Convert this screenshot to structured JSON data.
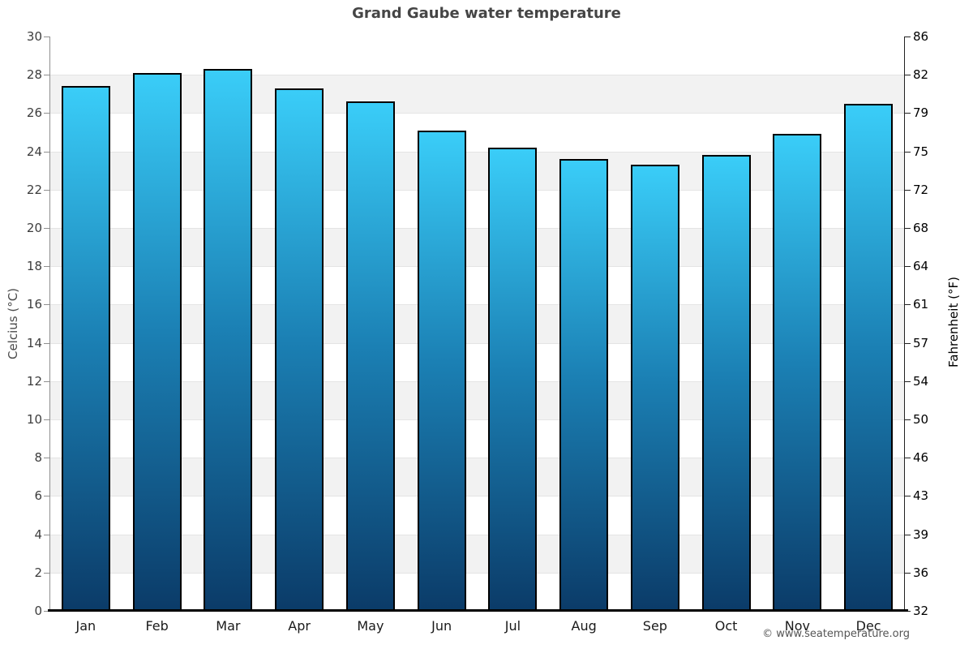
{
  "page": {
    "copyright": "© www.seatemperature.org"
  },
  "chart_data": {
    "type": "bar",
    "title": "Grand Gaube water temperature",
    "categories": [
      "Jan",
      "Feb",
      "Mar",
      "Apr",
      "May",
      "Jun",
      "Jul",
      "Aug",
      "Sep",
      "Oct",
      "Nov",
      "Dec"
    ],
    "values": [
      27.4,
      28.1,
      28.3,
      27.3,
      26.6,
      25.1,
      24.2,
      23.6,
      23.3,
      23.8,
      24.9,
      26.5
    ],
    "xlabel": "",
    "ylabel_left": "Celcius (°C)",
    "ylabel_right": "Fahrenheit (°F)",
    "ylim": [
      0,
      30
    ],
    "yticks_celsius": [
      30,
      28,
      26,
      24,
      22,
      20,
      18,
      16,
      14,
      12,
      10,
      8,
      6,
      4,
      2,
      0
    ],
    "yticks_fahrenheit": [
      86,
      82,
      79,
      75,
      72,
      68,
      64,
      61,
      57,
      54,
      50,
      46,
      43,
      39,
      36,
      32
    ],
    "grid": "alternating horizontal bands every 2°C",
    "legend": "none",
    "colors": {
      "bar_gradient_top": "#3ACDF8",
      "bar_gradient_mid": "#1B80B4",
      "bar_gradient_bottom": "#0B3B68",
      "bar_border": "#000000",
      "band_gray": "#f2f2f2",
      "band_white": "#ffffff",
      "gridline": "#e4e4e4"
    }
  }
}
